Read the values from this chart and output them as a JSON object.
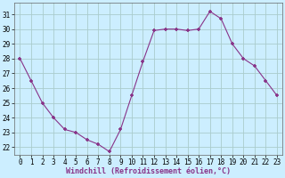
{
  "x": [
    0,
    1,
    2,
    3,
    4,
    5,
    6,
    7,
    8,
    9,
    10,
    11,
    12,
    13,
    14,
    15,
    16,
    17,
    18,
    19,
    20,
    21,
    22,
    23
  ],
  "y": [
    28,
    26.5,
    25,
    24,
    23.2,
    23,
    22.5,
    22.2,
    21.7,
    23.2,
    25.5,
    27.8,
    29.9,
    30,
    30,
    29.9,
    30,
    31.2,
    30.7,
    29,
    28,
    27.5,
    26.5,
    25.5
  ],
  "line_color": "#883388",
  "marker_color": "#883388",
  "bg_color": "#cceeff",
  "grid_color": "#aacccc",
  "xlabel": "Windchill (Refroidissement éolien,°C)",
  "ylim": [
    21.5,
    31.8
  ],
  "xlim": [
    -0.5,
    23.5
  ],
  "yticks": [
    22,
    23,
    24,
    25,
    26,
    27,
    28,
    29,
    30,
    31
  ],
  "xticks": [
    0,
    1,
    2,
    3,
    4,
    5,
    6,
    7,
    8,
    9,
    10,
    11,
    12,
    13,
    14,
    15,
    16,
    17,
    18,
    19,
    20,
    21,
    22,
    23
  ],
  "tick_fontsize": 5.5,
  "xlabel_fontsize": 6.0
}
